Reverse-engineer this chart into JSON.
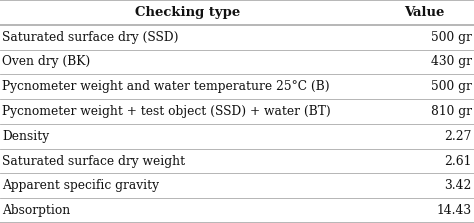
{
  "header": [
    "Checking type",
    "Value"
  ],
  "rows": [
    [
      "Saturated surface dry (SSD)",
      "500 gr"
    ],
    [
      "Oven dry (BK)",
      "430 gr"
    ],
    [
      "Pycnometer weight and water temperature 25°C (B)",
      "500 gr"
    ],
    [
      "Pycnometer weight + test object (SSD) + water (BT)",
      "810 gr"
    ],
    [
      "Density",
      "2.27"
    ],
    [
      "Saturated surface dry weight",
      "2.61"
    ],
    [
      "Apparent specific gravity",
      "3.42"
    ],
    [
      "Absorption",
      "14.43"
    ]
  ],
  "bg_color": "#ffffff",
  "line_color": "#aaaaaa",
  "text_color": "#111111",
  "header_fontsize": 9.5,
  "row_fontsize": 8.8,
  "col_split": 0.79
}
